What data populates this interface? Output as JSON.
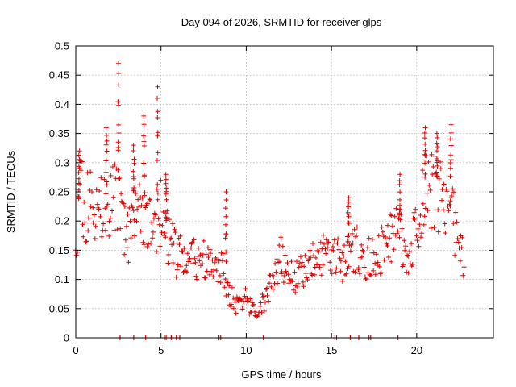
{
  "chart_data": {
    "type": "scatter",
    "title": "Day 094 of 2026, SRMTID for receiver glps",
    "xlabel": "GPS time / hours",
    "ylabel": "SRMTID / TECUs",
    "xlim": [
      0,
      24.5
    ],
    "ylim": [
      0,
      0.5
    ],
    "x_ticks": [
      0,
      5,
      10,
      15,
      20
    ],
    "x_tick_labels": [
      "0",
      "5",
      "10",
      "15",
      "20"
    ],
    "y_ticks": [
      0,
      0.05,
      0.1,
      0.15,
      0.2,
      0.25,
      0.3,
      0.35,
      0.4,
      0.45,
      0.5
    ],
    "y_tick_labels": [
      "0",
      "0.05",
      "0.1",
      "0.15",
      "0.2",
      "0.25",
      "0.3",
      "0.35",
      "0.4",
      "0.45",
      "0.5"
    ],
    "grid": true,
    "marker": "plus",
    "color": "#e00000",
    "series": [
      {
        "name": "SRMTID",
        "trend": {
          "x": [
            0,
            0.3,
            0.6,
            1.0,
            1.5,
            2.0,
            2.5,
            3.0,
            3.5,
            4.0,
            4.5,
            5.0,
            5.5,
            6.0,
            6.5,
            7.0,
            7.5,
            8.0,
            8.5,
            9.0,
            9.5,
            10.0,
            10.5,
            11.0,
            11.5,
            12.0,
            12.5,
            13.0,
            13.5,
            14.0,
            14.5,
            15.0,
            15.5,
            16.0,
            16.5,
            17.0,
            17.5,
            18.0,
            18.5,
            19.0,
            19.5,
            20.0,
            20.5,
            21.0,
            21.5,
            22.0,
            22.5,
            22.8
          ],
          "y": [
            0.18,
            0.25,
            0.22,
            0.23,
            0.22,
            0.23,
            0.25,
            0.16,
            0.22,
            0.2,
            0.19,
            0.22,
            0.16,
            0.14,
            0.13,
            0.14,
            0.13,
            0.12,
            0.13,
            0.07,
            0.06,
            0.065,
            0.05,
            0.06,
            0.1,
            0.14,
            0.1,
            0.11,
            0.12,
            0.13,
            0.14,
            0.15,
            0.13,
            0.14,
            0.15,
            0.13,
            0.14,
            0.15,
            0.18,
            0.17,
            0.14,
            0.2,
            0.25,
            0.26,
            0.24,
            0.22,
            0.16,
            0.13
          ]
        },
        "peaks": [
          {
            "x": 0.2,
            "y": 0.32
          },
          {
            "x": 1.8,
            "y": 0.36
          },
          {
            "x": 2.5,
            "y": 0.47
          },
          {
            "x": 3.4,
            "y": 0.33
          },
          {
            "x": 4.0,
            "y": 0.38
          },
          {
            "x": 4.8,
            "y": 0.43
          },
          {
            "x": 5.3,
            "y": 0.28
          },
          {
            "x": 8.8,
            "y": 0.25
          },
          {
            "x": 16.0,
            "y": 0.24
          },
          {
            "x": 19.0,
            "y": 0.28
          },
          {
            "x": 20.5,
            "y": 0.36
          },
          {
            "x": 21.2,
            "y": 0.35
          },
          {
            "x": 22.0,
            "y": 0.365
          }
        ],
        "zero_markers_x": [
          2.6,
          3.4,
          4.1,
          5.2,
          5.3,
          5.6,
          5.9,
          6.1,
          8.4,
          8.5,
          11.0,
          15.2,
          15.3,
          16.1,
          16.6,
          17.2,
          17.3,
          18.9
        ]
      }
    ]
  }
}
